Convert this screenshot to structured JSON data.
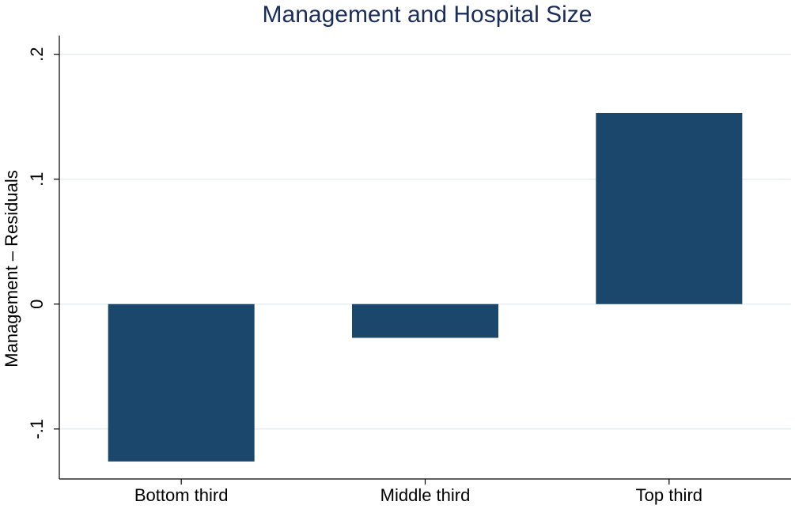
{
  "chart_data": {
    "type": "bar",
    "title": "Management and Hospital Size",
    "ylabel": "Management – Residuals",
    "categories": [
      "Bottom third",
      "Middle third",
      "Top third"
    ],
    "values": [
      -0.126,
      -0.027,
      0.153
    ],
    "color": "#1c476d",
    "ylim": [
      -0.14,
      0.215
    ],
    "yticks": [
      {
        "value": -0.1,
        "label": "-.1"
      },
      0,
      {
        "value": 0.1,
        "label": ".1"
      },
      {
        "value": 0.2,
        "label": ".2"
      }
    ],
    "grid": true
  }
}
